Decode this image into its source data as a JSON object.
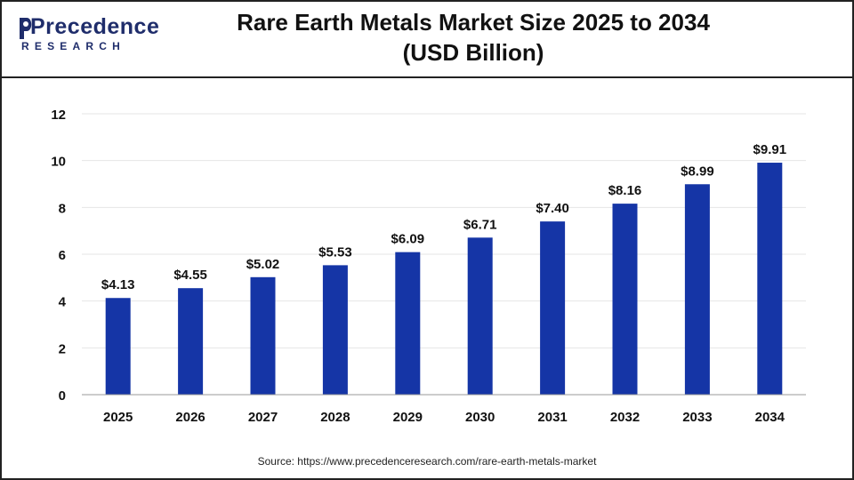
{
  "logo": {
    "word": "Precedence",
    "sub": "RESEARCH"
  },
  "chart_data": {
    "type": "bar",
    "title_line1": "Rare Earth Metals Market Size 2025 to 2034",
    "title_line2": "(USD Billion)",
    "categories": [
      "2025",
      "2026",
      "2027",
      "2028",
      "2029",
      "2030",
      "2031",
      "2032",
      "2033",
      "2034"
    ],
    "values": [
      4.13,
      4.55,
      5.02,
      5.53,
      6.09,
      6.71,
      7.4,
      8.16,
      8.99,
      9.91
    ],
    "value_labels": [
      "$4.13",
      "$4.55",
      "$5.02",
      "$5.53",
      "$6.09",
      "$6.71",
      "$7.40",
      "$8.16",
      "$8.99",
      "$9.91"
    ],
    "y_ticks": [
      0,
      2,
      4,
      6,
      8,
      10,
      12
    ],
    "ylim": [
      0,
      12
    ],
    "xlabel": "",
    "ylabel": "",
    "grid": true,
    "bar_color": "#1535a6"
  },
  "source": "Source: https://www.precedenceresearch.com/rare-earth-metals-market"
}
